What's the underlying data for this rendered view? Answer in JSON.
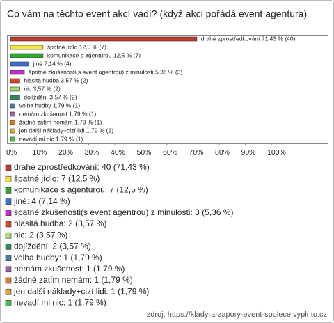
{
  "chart_data": {
    "type": "barh",
    "title": "Co vám na těchto event akcí vadí? (když akci pořádá event agentura)",
    "values": [
      71.43,
      12.5,
      12.5,
      7.14,
      5.36,
      3.57,
      3.57,
      3.57,
      1.79,
      1.79,
      1.79,
      1.79,
      1.79
    ],
    "value_labels": [
      "drahé zprostředkování 71,43 % (40)",
      "špatné jídlo 12,5 % (7)",
      "komunikace s agenturou 12,5 % (7)",
      "jiné 7,14 % (4)",
      "špatné zkušenosti(s event agentrou) z minulosti 5,36 % (3)",
      "hlasitá hudba 3,57 % (2)",
      "nic 3,57 % (2)",
      "dojíždění 3,57 % (2)",
      "volba hudby 1,79 % (1)",
      "nemám zkušenost 1,79 % (1)",
      "žádné zatím nemám 1,79 % (1)",
      "jen další náklady+cizí lidi 1,79 % (1)",
      "nevadí mi nic 1,79 % (1)"
    ],
    "legend": [
      "drahé zprostředkování: 40 (71,43 %)",
      "špatné jídlo: 7 (12,5 %)",
      "komunikace s agenturou: 7 (12,5 %)",
      "jiné: 4 (7,14 %)",
      "špatné zkušenosti(s event agentrou) z minulosti: 3 (5,36 %)",
      "hlasitá hudba: 2 (3,57 %)",
      "nic: 2 (3,57 %)",
      "dojíždění: 2 (3,57 %)",
      "volba hudby: 1 (1,79 %)",
      "nemám zkušenost: 1 (1,79 %)",
      "žádné zatím nemám: 1 (1,79 %)",
      "jen další náklady+cizí lidi: 1 (1,79 %)",
      "nevadí mi nic: 1 (1,79 %)"
    ],
    "colors": [
      "#c0392b",
      "#f2e640",
      "#2ea82e",
      "#3a6fd8",
      "#c030c8",
      "#e0461a",
      "#a6e070",
      "#2a8a5a",
      "#4a7aa8",
      "#a860a8",
      "#e07a20",
      "#e0a830",
      "#44c444"
    ],
    "xlim": [
      0,
      100
    ],
    "xticks": [
      {
        "value": 0,
        "label": "0%"
      },
      {
        "value": 10,
        "label": "10%"
      },
      {
        "value": 20,
        "label": "20%"
      },
      {
        "value": 30,
        "label": "30%"
      },
      {
        "value": 40,
        "label": "40%"
      },
      {
        "value": 50,
        "label": "50%"
      },
      {
        "value": 60,
        "label": "60%"
      },
      {
        "value": 70,
        "label": "70%"
      },
      {
        "value": 80,
        "label": "80%"
      },
      {
        "value": 90,
        "label": "90%"
      },
      {
        "value": 100,
        "label": "100%"
      }
    ],
    "source": "zdroj: https://klady-a-zapory-event-spolece.vyplnto.cz"
  }
}
